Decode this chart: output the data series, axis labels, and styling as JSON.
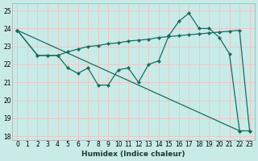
{
  "xlabel": "Humidex (Indice chaleur)",
  "background_color": "#c8ebe8",
  "grid_color": "#e8c8c8",
  "line_color": "#1a6b5e",
  "xlim": [
    -0.5,
    23.5
  ],
  "ylim": [
    17.8,
    25.4
  ],
  "xticks": [
    0,
    1,
    2,
    3,
    4,
    5,
    6,
    7,
    8,
    9,
    10,
    11,
    12,
    13,
    14,
    15,
    16,
    17,
    18,
    19,
    20,
    21,
    22,
    23
  ],
  "yticks": [
    18,
    19,
    20,
    21,
    22,
    23,
    24,
    25
  ],
  "line1_x": [
    0,
    22
  ],
  "line1_y": [
    23.9,
    18.3
  ],
  "line2_x": [
    0,
    2,
    3,
    4,
    5,
    6,
    7,
    8,
    9,
    10,
    11,
    12,
    13,
    14,
    15,
    16,
    17,
    18,
    19,
    20,
    21,
    22,
    23
  ],
  "line2_y": [
    23.9,
    22.5,
    22.5,
    22.5,
    21.8,
    21.5,
    21.8,
    20.85,
    20.85,
    21.7,
    21.8,
    21.0,
    22.0,
    22.2,
    23.6,
    24.4,
    24.85,
    24.0,
    24.0,
    23.5,
    22.6,
    18.3,
    18.3
  ],
  "line3_x": [
    0,
    2,
    3,
    4,
    5,
    6,
    7,
    8,
    9,
    10,
    11,
    12,
    13,
    14,
    15,
    16,
    17,
    18,
    19,
    20,
    21,
    22,
    23
  ],
  "line3_y": [
    23.9,
    22.5,
    22.5,
    22.5,
    22.7,
    22.85,
    23.0,
    23.05,
    23.15,
    23.2,
    23.3,
    23.35,
    23.4,
    23.5,
    23.55,
    23.6,
    23.65,
    23.7,
    23.75,
    23.8,
    23.85,
    23.9,
    18.3
  ]
}
